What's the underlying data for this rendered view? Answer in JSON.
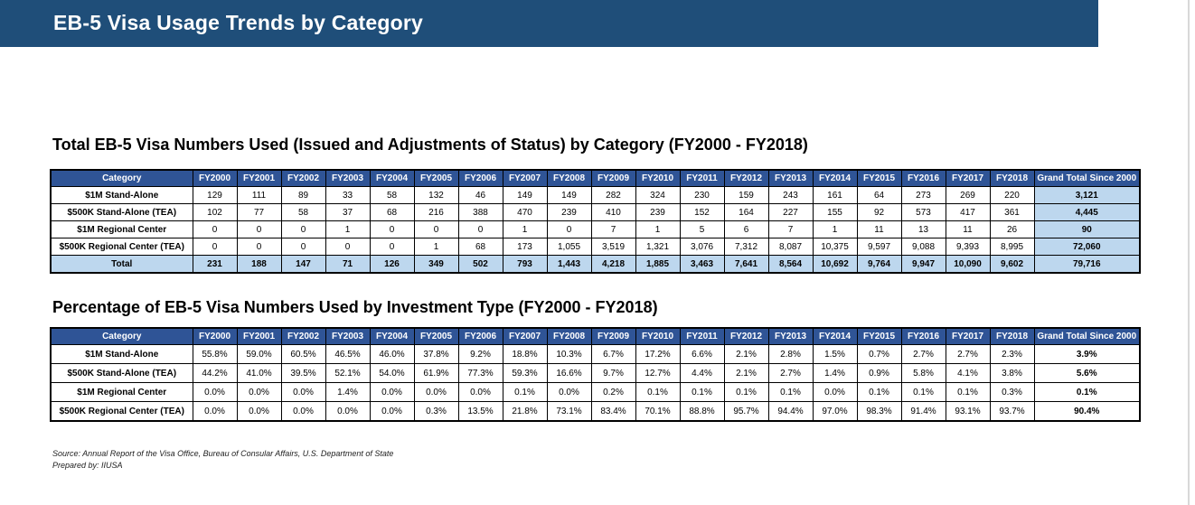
{
  "banner": {
    "title": "EB-5 Visa Usage Trends by Category"
  },
  "table1": {
    "title": "Total EB-5 Visa Numbers Used (Issued and Adjustments of Status) by Category (FY2000 - FY2018)",
    "headers": [
      "Category",
      "FY2000",
      "FY2001",
      "FY2002",
      "FY2003",
      "FY2004",
      "FY2005",
      "FY2006",
      "FY2007",
      "FY2008",
      "FY2009",
      "FY2010",
      "FY2011",
      "FY2012",
      "FY2013",
      "FY2014",
      "FY2015",
      "FY2016",
      "FY2017",
      "FY2018",
      "Grand Total Since 2000"
    ],
    "rows": [
      [
        "$1M Stand-Alone",
        "129",
        "111",
        "89",
        "33",
        "58",
        "132",
        "46",
        "149",
        "149",
        "282",
        "324",
        "230",
        "159",
        "243",
        "161",
        "64",
        "273",
        "269",
        "220",
        "3,121"
      ],
      [
        "$500K Stand-Alone (TEA)",
        "102",
        "77",
        "58",
        "37",
        "68",
        "216",
        "388",
        "470",
        "239",
        "410",
        "239",
        "152",
        "164",
        "227",
        "155",
        "92",
        "573",
        "417",
        "361",
        "4,445"
      ],
      [
        "$1M Regional Center",
        "0",
        "0",
        "0",
        "1",
        "0",
        "0",
        "0",
        "1",
        "0",
        "7",
        "1",
        "5",
        "6",
        "7",
        "1",
        "11",
        "13",
        "11",
        "26",
        "90"
      ],
      [
        "$500K Regional Center (TEA)",
        "0",
        "0",
        "0",
        "0",
        "0",
        "1",
        "68",
        "173",
        "1,055",
        "3,519",
        "1,321",
        "3,076",
        "7,312",
        "8,087",
        "10,375",
        "9,597",
        "9,088",
        "9,393",
        "8,995",
        "72,060"
      ],
      [
        "Total",
        "231",
        "188",
        "147",
        "71",
        "126",
        "349",
        "502",
        "793",
        "1,443",
        "4,218",
        "1,885",
        "3,463",
        "7,641",
        "8,564",
        "10,692",
        "9,764",
        "9,947",
        "10,090",
        "9,602",
        "79,716"
      ]
    ]
  },
  "table2": {
    "title": "Percentage of EB-5 Visa Numbers Used by Investment Type (FY2000 - FY2018)",
    "headers": [
      "Category",
      "FY2000",
      "FY2001",
      "FY2002",
      "FY2003",
      "FY2004",
      "FY2005",
      "FY2006",
      "FY2007",
      "FY2008",
      "FY2009",
      "FY2010",
      "FY2011",
      "FY2012",
      "FY2013",
      "FY2014",
      "FY2015",
      "FY2016",
      "FY2017",
      "FY2018",
      "Grand Total Since 2000"
    ],
    "rows": [
      [
        "$1M Stand-Alone",
        "55.8%",
        "59.0%",
        "60.5%",
        "46.5%",
        "46.0%",
        "37.8%",
        "9.2%",
        "18.8%",
        "10.3%",
        "6.7%",
        "17.2%",
        "6.6%",
        "2.1%",
        "2.8%",
        "1.5%",
        "0.7%",
        "2.7%",
        "2.7%",
        "2.3%",
        "3.9%"
      ],
      [
        "$500K Stand-Alone (TEA)",
        "44.2%",
        "41.0%",
        "39.5%",
        "52.1%",
        "54.0%",
        "61.9%",
        "77.3%",
        "59.3%",
        "16.6%",
        "9.7%",
        "12.7%",
        "4.4%",
        "2.1%",
        "2.7%",
        "1.4%",
        "0.9%",
        "5.8%",
        "4.1%",
        "3.8%",
        "5.6%"
      ],
      [
        "$1M Regional Center",
        "0.0%",
        "0.0%",
        "0.0%",
        "1.4%",
        "0.0%",
        "0.0%",
        "0.0%",
        "0.1%",
        "0.0%",
        "0.2%",
        "0.1%",
        "0.1%",
        "0.1%",
        "0.1%",
        "0.0%",
        "0.1%",
        "0.1%",
        "0.1%",
        "0.3%",
        "0.1%"
      ],
      [
        "$500K Regional Center (TEA)",
        "0.0%",
        "0.0%",
        "0.0%",
        "0.0%",
        "0.0%",
        "0.3%",
        "13.5%",
        "21.8%",
        "73.1%",
        "83.4%",
        "70.1%",
        "88.8%",
        "95.7%",
        "94.4%",
        "97.0%",
        "98.3%",
        "91.4%",
        "93.1%",
        "93.7%",
        "90.4%"
      ]
    ]
  },
  "footer": {
    "source": "Source: Annual Report of the Visa Office, Bureau of Consular Affairs, U.S. Department of State",
    "prepared": "Prepared by: IIUSA"
  },
  "colors": {
    "banner": "#1f4e79",
    "header": "#2f5496",
    "highlight": "#bdd7ee"
  }
}
